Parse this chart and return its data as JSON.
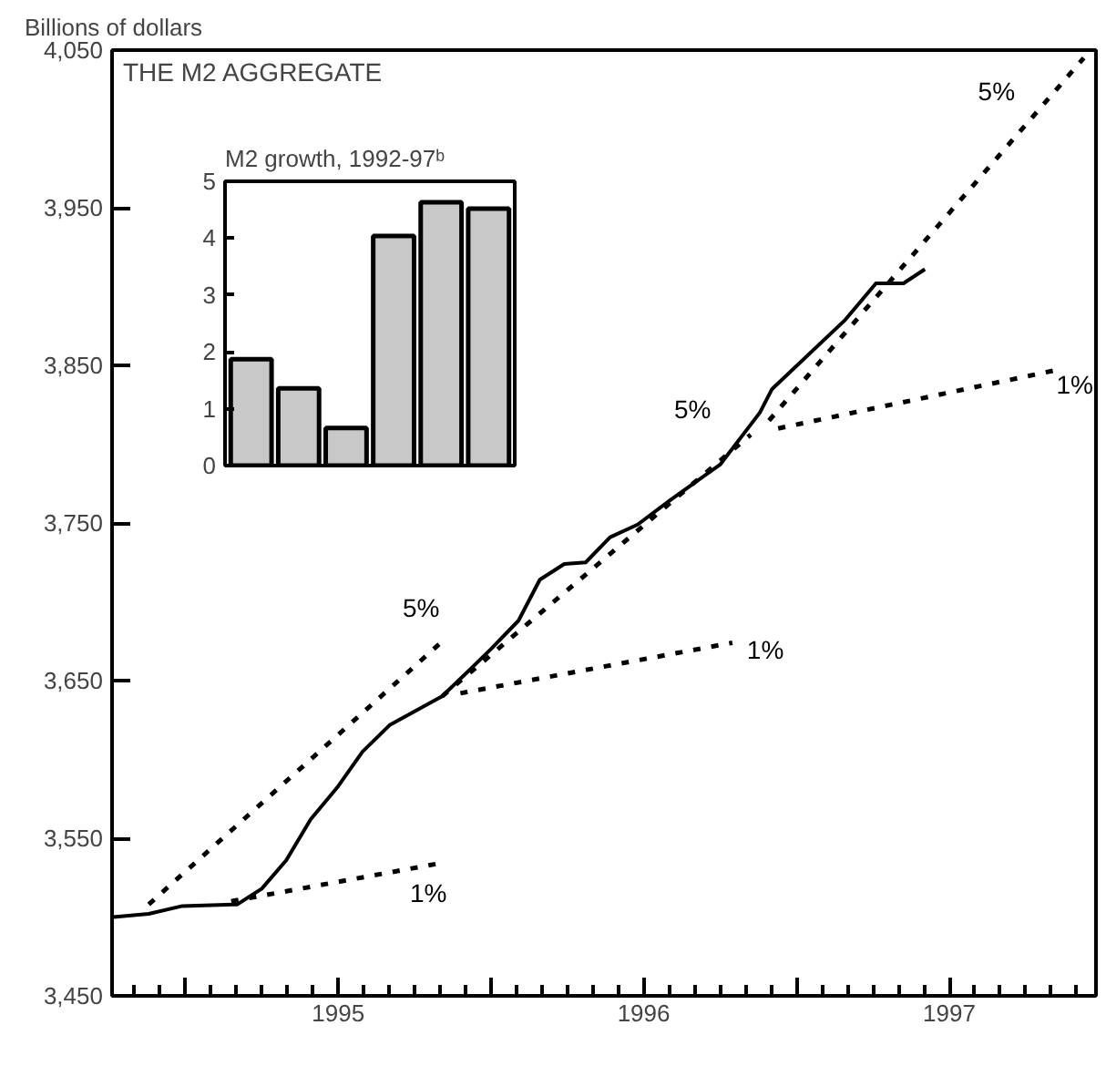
{
  "chart_data": [
    {
      "type": "line",
      "title": "THE M2 AGGREGATE",
      "ylabel": "Billions of dollars",
      "xlim": [
        1994.76,
        1997.98
      ],
      "ylim": [
        3450,
        4050
      ],
      "xticks": [
        {
          "value": 1995,
          "label": null
        },
        {
          "value": 1995.5,
          "label": "1995"
        },
        {
          "value": 1996,
          "label": null
        },
        {
          "value": 1996.5,
          "label": "1996"
        },
        {
          "value": 1997,
          "label": null
        },
        {
          "value": 1997.5,
          "label": "1997"
        }
      ],
      "yticks": [
        {
          "value": 3450,
          "label": "3,450"
        },
        {
          "value": 3550,
          "label": "3,550"
        },
        {
          "value": 3650,
          "label": "3,650"
        },
        {
          "value": 3750,
          "label": "3,750"
        },
        {
          "value": 3850,
          "label": "3,850"
        },
        {
          "value": 3950,
          "label": "3,950"
        },
        {
          "value": 4050,
          "label": "4,050"
        }
      ],
      "series": [
        {
          "color": "#000000",
          "line_style": "solid",
          "x": [
            1994.765,
            1994.88,
            1994.99,
            1995.17,
            1995.25,
            1995.33,
            1995.41,
            1995.5,
            1995.58,
            1995.67,
            1995.84,
            1995.91,
            1996.0,
            1996.09,
            1996.16,
            1996.24,
            1996.31,
            1996.39,
            1996.48,
            1996.59,
            1996.75,
            1996.88,
            1996.92,
            1997.16,
            1997.26,
            1997.35,
            1997.42
          ],
          "values": [
            3500,
            3502,
            3507,
            3508,
            3518,
            3536,
            3562,
            3583,
            3605,
            3622,
            3640,
            3653,
            3670,
            3688,
            3714,
            3724,
            3725,
            3741,
            3749,
            3765,
            3787,
            3820,
            3835,
            3879,
            3902,
            3902,
            3911
          ]
        },
        {
          "name": "5%",
          "color": "#000000",
          "line_style": "dashed",
          "x": [
            1994.88,
            1995.83
          ],
          "values": [
            3508,
            3673
          ]
        },
        {
          "name": "1%",
          "color": "#000000",
          "line_style": "dashed",
          "x": [
            1995.15,
            1995.83
          ],
          "values": [
            3510,
            3534
          ]
        },
        {
          "name": "5%",
          "color": "#000000",
          "line_style": "dashed",
          "x": [
            1995.84,
            1996.85
          ],
          "values": [
            3640,
            3806
          ]
        },
        {
          "name": "1%",
          "color": "#000000",
          "line_style": "dashed",
          "x": [
            1995.9,
            1996.79
          ],
          "values": [
            3642,
            3674
          ]
        },
        {
          "name": "5%",
          "color": "#000000",
          "line_style": "dashed",
          "x": [
            1996.91,
            1997.94
          ],
          "values": [
            3815,
            4045
          ]
        },
        {
          "name": "1%",
          "color": "#000000",
          "line_style": "dashed",
          "x": [
            1996.94,
            1997.85
          ],
          "values": [
            3810,
            3847
          ]
        }
      ]
    },
    {
      "type": "bar",
      "title": "M2 growth, 1992-97ᵇ",
      "categories": [
        null,
        null,
        null,
        null,
        null,
        null
      ],
      "values": [
        1.87,
        1.36,
        0.66,
        4.04,
        4.63,
        4.52
      ],
      "color": "#c8c8c8",
      "ylim": [
        0,
        5
      ],
      "yticks": [
        0,
        1,
        2,
        3,
        4,
        5
      ]
    }
  ]
}
